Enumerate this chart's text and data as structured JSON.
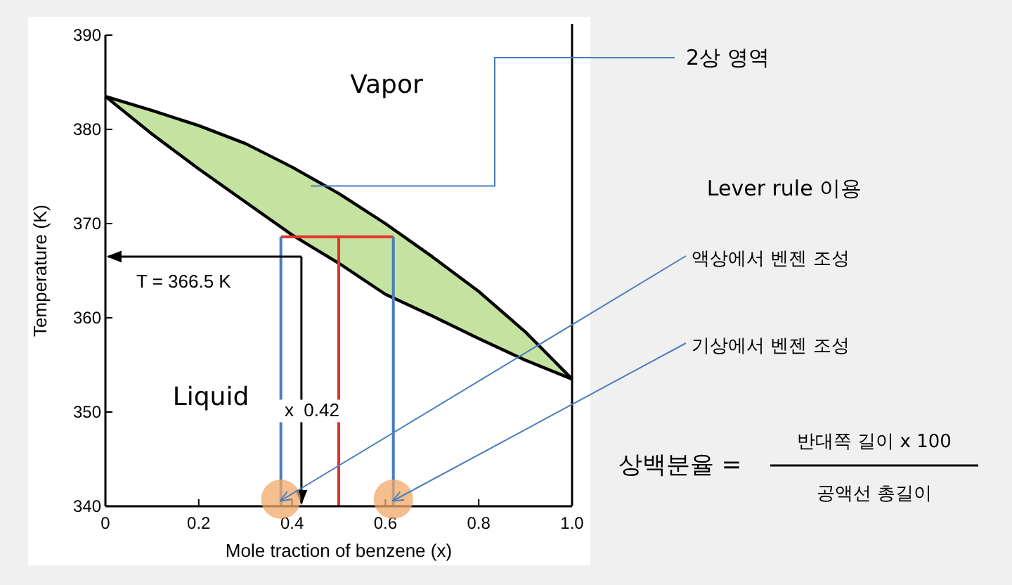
{
  "chart_data": {
    "type": "line",
    "xlabel": "Mole traction of benzene (x)",
    "ylabel": "Temperature (K)",
    "x": [
      0,
      0.1,
      0.2,
      0.3,
      0.4,
      0.5,
      0.6,
      0.7,
      0.8,
      0.9,
      1.0
    ],
    "series": [
      {
        "color": "#000000",
        "values": [
          383.5,
          382.0,
          380.4,
          378.5,
          376.0,
          373.2,
          370.0,
          366.5,
          362.8,
          358.5,
          353.5
        ],
        "lower": [
          383.5,
          379.5,
          375.8,
          372.3,
          368.8,
          365.8,
          362.5,
          360.2,
          357.8,
          355.5,
          353.5
        ],
        "upper": [
          383.5,
          382.0,
          380.4,
          378.5,
          376.0,
          373.2,
          370.0,
          366.5,
          362.8,
          358.5,
          353.5
        ]
      },
      {
        "color": "#e8302a",
        "x": [
          0.376,
          0.617
        ],
        "values": [
          368.6,
          368.6
        ]
      },
      {
        "color": "#e8302a",
        "x": [
          0.5,
          0.5
        ],
        "values": [
          368.6,
          340
        ]
      },
      {
        "color": "#4a7ebb",
        "x": [
          0.376,
          0.376
        ],
        "values": [
          368.6,
          340
        ]
      },
      {
        "color": "#4a7ebb",
        "x": [
          0.617,
          0.617
        ],
        "values": [
          368.6,
          340
        ]
      }
    ],
    "xlim": [
      0,
      1
    ],
    "xticks": [
      0,
      0.2,
      0.4,
      0.6,
      0.8,
      {
        "value": 1,
        "label": "1.0"
      }
    ],
    "ylim": [
      340,
      390
    ],
    "yticks": [
      340,
      350,
      360,
      370,
      380,
      390
    ],
    "ref_lines": [
      {
        "axis": "y",
        "value": 366.5,
        "label": "T = 366.5 K",
        "color": "#000000"
      },
      {
        "axis": "x",
        "value": 0.42,
        "label": "x  0.42",
        "color": "#000000"
      }
    ],
    "annotations": [
      "Vapor",
      "Liquid",
      {
        "text": "2상 영역",
        "x": 0.44,
        "y": 374
      },
      "Lever rule 이용",
      {
        "text": "액상에서 벤젠 조성",
        "x": 0.376,
        "y": 340
      },
      {
        "text": "기상에서 벤젠 조성",
        "x": 0.617,
        "y": 340
      },
      "상백분율 =",
      "반대쪽 길이 x 100",
      "공액선 총길이"
    ],
    "grid": false,
    "marker": "none",
    "line_style": "solid"
  }
}
